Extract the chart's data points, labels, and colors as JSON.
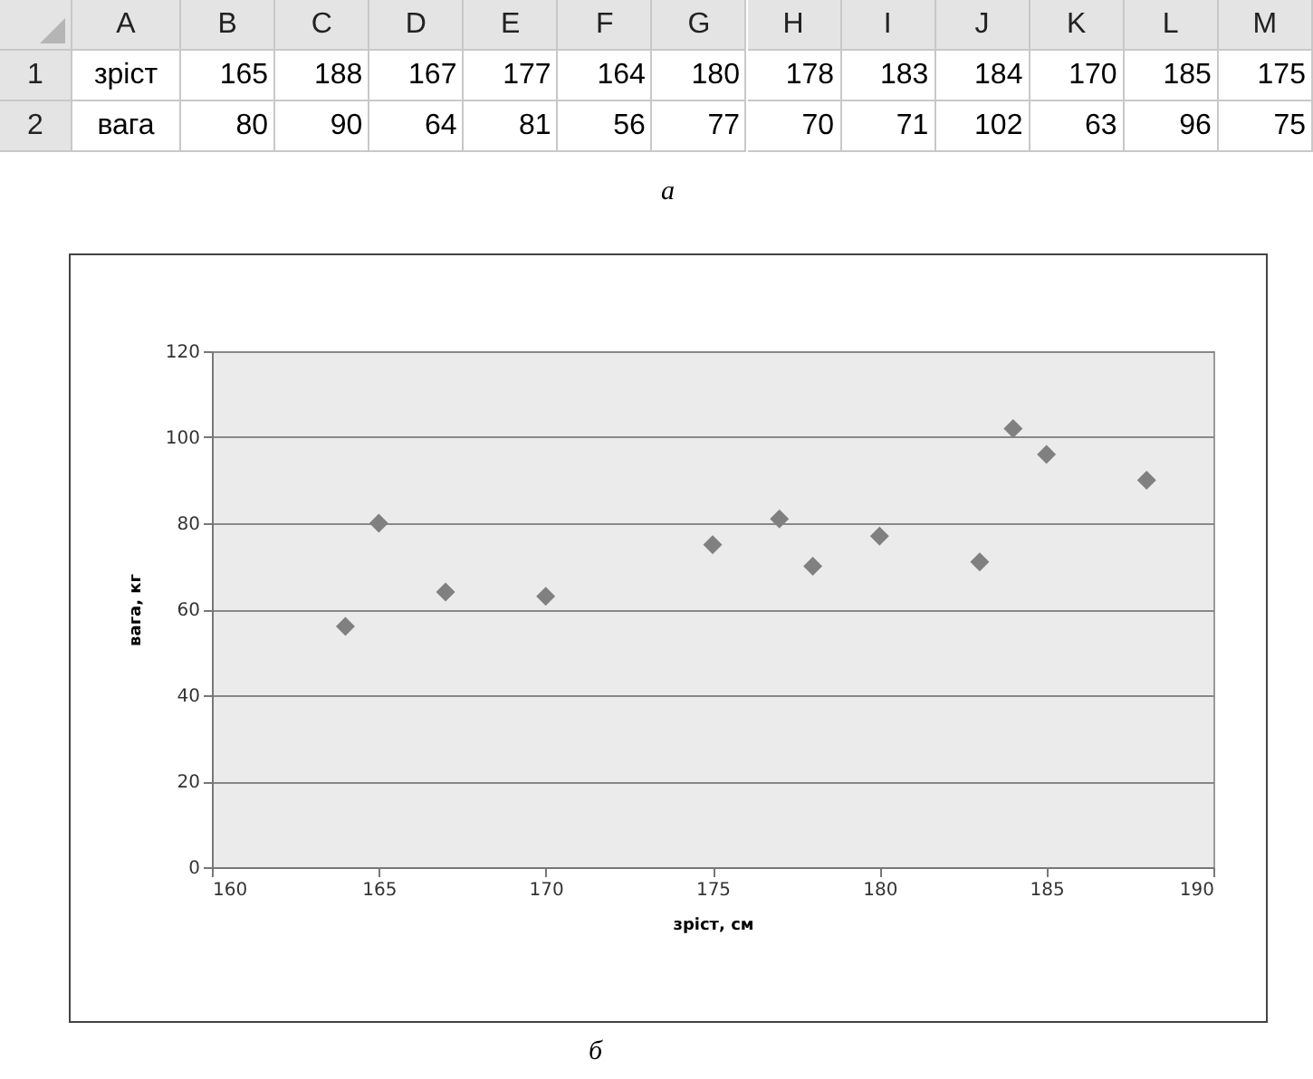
{
  "chart_data": [
    {
      "type": "other",
      "annotations": [
        "A",
        "B",
        "C",
        "D",
        "E",
        "F",
        "G",
        "H",
        "I",
        "J",
        "K",
        "L",
        "M",
        "1",
        "зріст",
        "165",
        "188",
        "167",
        "177",
        "164",
        "180",
        "178",
        "183",
        "184",
        "170",
        "185",
        "175",
        "2",
        "вага",
        "80",
        "90",
        "64",
        "81",
        "56",
        "77",
        "70",
        "71",
        "102",
        "63",
        "96",
        "75",
        "а"
      ]
    },
    {
      "type": "scatter",
      "xlabel": "зріст, см",
      "ylabel": "вага, кг",
      "x": [
        165,
        188,
        167,
        177,
        164,
        180,
        178,
        183,
        184,
        170,
        185,
        175
      ],
      "values": [
        80,
        90,
        64,
        81,
        56,
        77,
        70,
        71,
        102,
        63,
        96,
        75
      ],
      "color": "#808080",
      "marker": "diamond",
      "xlim": [
        160,
        190
      ],
      "xticks": [
        160,
        165,
        170,
        175,
        180,
        185,
        190
      ],
      "ylim": [
        0,
        120
      ],
      "yticks": [
        0,
        20,
        40,
        60,
        80,
        100,
        120
      ],
      "grid": "y",
      "annotations": [
        "б"
      ]
    }
  ]
}
